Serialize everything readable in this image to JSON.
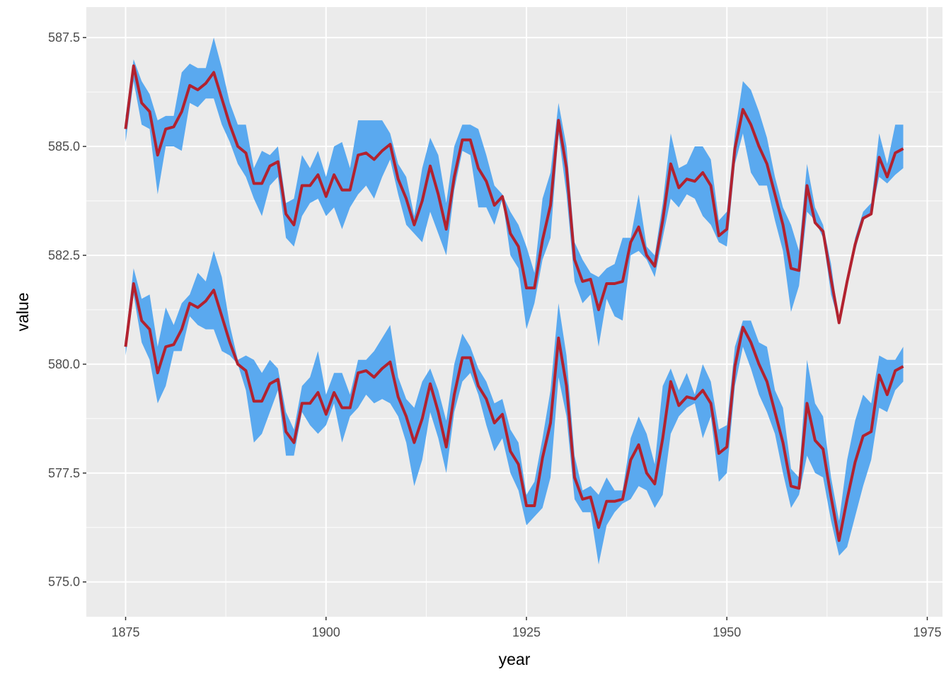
{
  "chart_data": {
    "type": "line",
    "title": "",
    "xlabel": "year",
    "ylabel": "value",
    "xlim": [
      1870.1,
      1976.9
    ],
    "ylim": [
      574.2,
      588.2
    ],
    "x_ticks": [
      1875,
      1900,
      1925,
      1950,
      1975
    ],
    "x_tick_labels": [
      "1875",
      "1900",
      "1925",
      "1950",
      "1975"
    ],
    "y_ticks": [
      575.0,
      577.5,
      580.0,
      582.5,
      585.0,
      587.5
    ],
    "y_tick_labels": [
      "575.0",
      "577.5",
      "580.0",
      "582.5",
      "585.0",
      "587.5"
    ],
    "grid": true,
    "legend": "none",
    "colors": {
      "panel": "#ebebeb",
      "grid": "#ffffff",
      "ribbon": "#5aa9ef",
      "line": "#b2222f"
    },
    "x": [
      1875,
      1876,
      1877,
      1878,
      1879,
      1880,
      1881,
      1882,
      1883,
      1884,
      1885,
      1886,
      1887,
      1888,
      1889,
      1890,
      1891,
      1892,
      1893,
      1894,
      1895,
      1896,
      1897,
      1898,
      1899,
      1900,
      1901,
      1902,
      1903,
      1904,
      1905,
      1906,
      1907,
      1908,
      1909,
      1910,
      1911,
      1912,
      1913,
      1914,
      1915,
      1916,
      1917,
      1918,
      1919,
      1920,
      1921,
      1922,
      1923,
      1924,
      1925,
      1926,
      1927,
      1928,
      1929,
      1930,
      1931,
      1932,
      1933,
      1934,
      1935,
      1936,
      1937,
      1938,
      1939,
      1940,
      1941,
      1942,
      1943,
      1944,
      1945,
      1946,
      1947,
      1948,
      1949,
      1950,
      1951,
      1952,
      1953,
      1954,
      1955,
      1956,
      1957,
      1958,
      1959,
      1960,
      1961,
      1962,
      1963,
      1964,
      1965,
      1966,
      1967,
      1968,
      1969,
      1970,
      1971,
      1972
    ],
    "series": [
      {
        "values": [
          585.4,
          586.85,
          586.0,
          585.8,
          584.8,
          585.4,
          585.45,
          585.8,
          586.4,
          586.3,
          586.45,
          586.7,
          586.1,
          585.5,
          585.0,
          584.85,
          584.15,
          584.15,
          584.55,
          584.65,
          583.45,
          583.2,
          584.1,
          584.1,
          584.35,
          583.85,
          584.35,
          584.0,
          584.0,
          584.8,
          584.85,
          584.7,
          584.9,
          585.05,
          584.25,
          583.8,
          583.2,
          583.75,
          584.55,
          583.9,
          583.1,
          584.3,
          585.15,
          585.15,
          584.5,
          584.2,
          583.65,
          583.85,
          583.0,
          582.7,
          581.75,
          581.75,
          582.85,
          583.65,
          585.6,
          584.5,
          582.4,
          581.9,
          581.95,
          581.25,
          581.85,
          581.85,
          581.9,
          582.8,
          583.15,
          582.5,
          582.25,
          583.3,
          584.6,
          584.05,
          584.25,
          584.2,
          584.4,
          584.1,
          582.95,
          583.1,
          584.95,
          585.85,
          585.5,
          585.0,
          584.6,
          583.9,
          583.2,
          582.2,
          582.15,
          584.1,
          583.25,
          583.05,
          581.95,
          580.95,
          581.9,
          582.75,
          583.35,
          583.45,
          584.75,
          584.3,
          584.85,
          584.95
        ],
        "lower": [
          585.1,
          586.5,
          585.5,
          585.4,
          583.9,
          585.0,
          585.0,
          584.9,
          586.0,
          585.9,
          586.1,
          586.1,
          585.5,
          585.1,
          584.6,
          584.3,
          583.8,
          583.4,
          584.1,
          584.3,
          582.9,
          582.7,
          583.4,
          583.7,
          583.8,
          583.4,
          583.6,
          583.1,
          583.6,
          583.9,
          584.1,
          583.8,
          584.3,
          584.7,
          583.9,
          583.2,
          583.0,
          582.8,
          583.5,
          583.0,
          582.5,
          584.0,
          584.9,
          584.8,
          583.6,
          583.6,
          583.2,
          583.8,
          582.5,
          582.2,
          580.8,
          581.4,
          582.4,
          582.9,
          585.3,
          583.9,
          581.9,
          581.4,
          581.6,
          580.4,
          581.5,
          581.1,
          581.0,
          582.5,
          582.6,
          582.4,
          582.0,
          582.9,
          583.8,
          583.6,
          583.9,
          583.8,
          583.4,
          583.2,
          582.8,
          582.7,
          584.6,
          585.3,
          584.4,
          584.1,
          584.1,
          583.3,
          582.6,
          581.2,
          581.8,
          583.5,
          583.3,
          582.9,
          581.6,
          580.95,
          581.9,
          582.6,
          583.3,
          583.45,
          584.3,
          584.15,
          584.35,
          584.5
        ],
        "upper": [
          585.7,
          587.0,
          586.5,
          586.2,
          585.6,
          585.7,
          585.7,
          586.7,
          586.9,
          586.8,
          586.8,
          587.5,
          586.8,
          586.0,
          585.5,
          585.5,
          584.5,
          584.9,
          584.8,
          585.0,
          583.7,
          583.8,
          584.8,
          584.5,
          584.9,
          584.3,
          585.0,
          585.1,
          584.5,
          585.6,
          585.6,
          585.6,
          585.6,
          585.3,
          584.6,
          584.3,
          583.4,
          584.5,
          585.2,
          584.8,
          583.7,
          585.0,
          585.5,
          585.5,
          585.4,
          584.8,
          584.1,
          583.9,
          583.5,
          583.2,
          582.7,
          582.1,
          583.8,
          584.4,
          586.0,
          585.0,
          582.8,
          582.4,
          582.1,
          582.0,
          582.2,
          582.3,
          582.9,
          582.9,
          583.9,
          582.7,
          582.5,
          583.7,
          585.3,
          584.5,
          584.6,
          585.0,
          585.0,
          584.7,
          583.3,
          583.5,
          585.3,
          586.5,
          586.3,
          585.8,
          585.2,
          584.3,
          583.6,
          583.2,
          582.6,
          584.6,
          583.6,
          583.2,
          582.3,
          580.95,
          581.9,
          582.9,
          583.5,
          583.7,
          585.3,
          584.6,
          585.5,
          585.5
        ]
      },
      {
        "values": [
          580.4,
          581.85,
          581.0,
          580.8,
          579.8,
          580.4,
          580.45,
          580.8,
          581.4,
          581.3,
          581.45,
          581.7,
          581.1,
          580.5,
          580.0,
          579.85,
          579.15,
          579.15,
          579.55,
          579.65,
          578.45,
          578.2,
          579.1,
          579.1,
          579.35,
          578.85,
          579.35,
          579.0,
          579.0,
          579.8,
          579.85,
          579.7,
          579.9,
          580.05,
          579.25,
          578.8,
          578.2,
          578.75,
          579.55,
          578.9,
          578.1,
          579.3,
          580.15,
          580.15,
          579.5,
          579.2,
          578.65,
          578.85,
          578.0,
          577.7,
          576.75,
          576.75,
          577.85,
          578.65,
          580.6,
          579.5,
          577.4,
          576.9,
          576.95,
          576.25,
          576.85,
          576.85,
          576.9,
          577.8,
          578.15,
          577.5,
          577.25,
          578.3,
          579.6,
          579.05,
          579.25,
          579.2,
          579.4,
          579.1,
          577.95,
          578.1,
          579.95,
          580.85,
          580.5,
          580.0,
          579.6,
          578.9,
          578.2,
          577.2,
          577.15,
          579.1,
          578.25,
          578.05,
          576.95,
          575.95,
          576.9,
          577.75,
          578.35,
          578.45,
          579.75,
          579.3,
          579.85,
          579.95
        ],
        "lower": [
          580.2,
          581.6,
          580.5,
          580.1,
          579.1,
          579.5,
          580.3,
          580.3,
          581.1,
          580.9,
          580.8,
          580.8,
          580.3,
          580.2,
          580.0,
          579.4,
          578.2,
          578.4,
          578.9,
          579.4,
          577.9,
          577.9,
          578.9,
          578.6,
          578.4,
          578.6,
          579.1,
          578.2,
          578.8,
          579.0,
          579.3,
          579.1,
          579.2,
          579.1,
          578.8,
          578.2,
          577.2,
          577.8,
          578.9,
          578.3,
          577.5,
          578.9,
          579.6,
          579.8,
          579.3,
          578.6,
          578.0,
          578.3,
          577.5,
          577.1,
          576.3,
          576.5,
          576.7,
          577.4,
          579.7,
          578.8,
          576.9,
          576.6,
          576.6,
          575.4,
          576.3,
          576.6,
          576.8,
          576.9,
          577.2,
          577.1,
          576.7,
          577.0,
          578.4,
          578.8,
          579.0,
          579.1,
          578.3,
          578.8,
          577.3,
          577.5,
          579.5,
          580.4,
          579.9,
          579.3,
          578.9,
          578.4,
          577.5,
          576.7,
          577.0,
          577.9,
          577.5,
          577.4,
          576.4,
          575.6,
          575.8,
          576.5,
          577.2,
          577.8,
          579.0,
          578.9,
          579.4,
          579.6
        ],
        "upper": [
          580.6,
          582.2,
          581.5,
          581.6,
          580.4,
          581.3,
          580.9,
          581.4,
          581.6,
          582.1,
          581.9,
          582.6,
          582.0,
          580.9,
          580.1,
          580.2,
          580.1,
          579.8,
          580.1,
          579.9,
          578.9,
          578.5,
          579.5,
          579.7,
          580.3,
          579.3,
          579.8,
          579.8,
          579.3,
          580.1,
          580.1,
          580.3,
          580.6,
          580.9,
          579.7,
          579.2,
          579.0,
          579.6,
          579.9,
          579.4,
          578.7,
          580.0,
          580.7,
          580.4,
          579.9,
          579.6,
          579.1,
          579.2,
          578.5,
          578.2,
          577.0,
          577.3,
          578.3,
          579.4,
          581.4,
          580.2,
          577.9,
          577.1,
          577.2,
          577.0,
          577.4,
          577.1,
          577.1,
          578.3,
          578.8,
          578.4,
          577.7,
          579.5,
          579.9,
          579.4,
          579.8,
          579.3,
          580.0,
          579.6,
          578.5,
          578.6,
          580.4,
          581.0,
          581.0,
          580.5,
          580.4,
          579.4,
          579.0,
          577.6,
          577.4,
          580.1,
          579.1,
          578.8,
          577.4,
          576.4,
          577.8,
          578.7,
          579.3,
          579.1,
          580.2,
          580.1,
          580.1,
          580.4
        ]
      }
    ]
  }
}
